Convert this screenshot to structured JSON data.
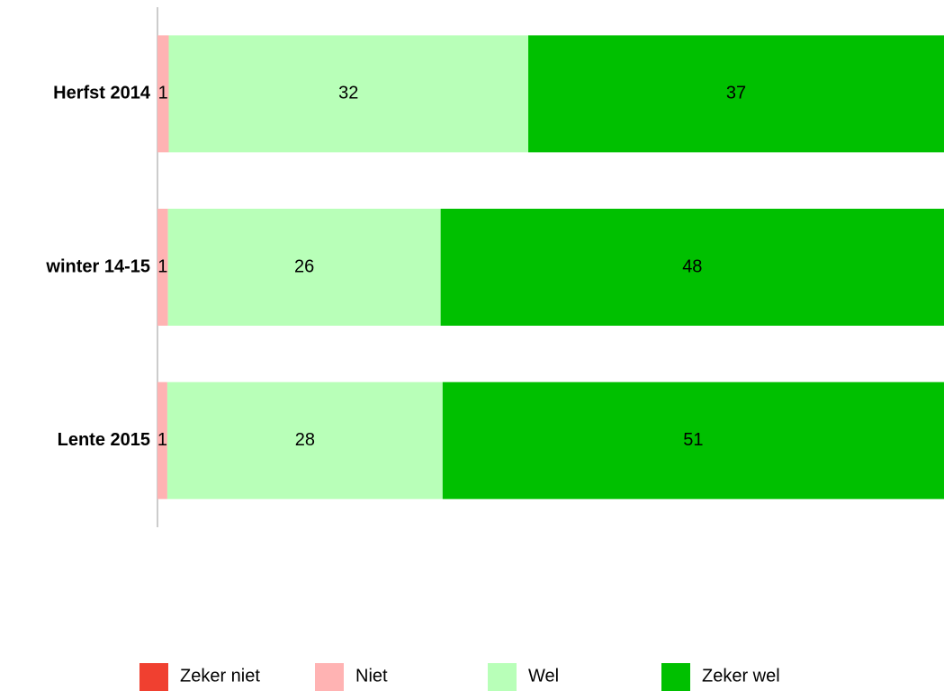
{
  "chart_data": {
    "type": "stacked-bar-100",
    "categories": [
      "Herfst 2014",
      "winter 14-15",
      "Lente 2015"
    ],
    "series": [
      {
        "name": "Zeker niet",
        "color": "#f04030",
        "values": [
          null,
          null,
          null
        ]
      },
      {
        "name": "Niet",
        "color": "#ffb3b3",
        "values": [
          1,
          1,
          1
        ]
      },
      {
        "name": "Wel",
        "color": "#b8ffb8",
        "values": [
          32,
          26,
          28
        ]
      },
      {
        "name": "Zeker wel",
        "color": "#00c000",
        "values": [
          37,
          48,
          51
        ]
      }
    ],
    "legend": "bottom"
  }
}
